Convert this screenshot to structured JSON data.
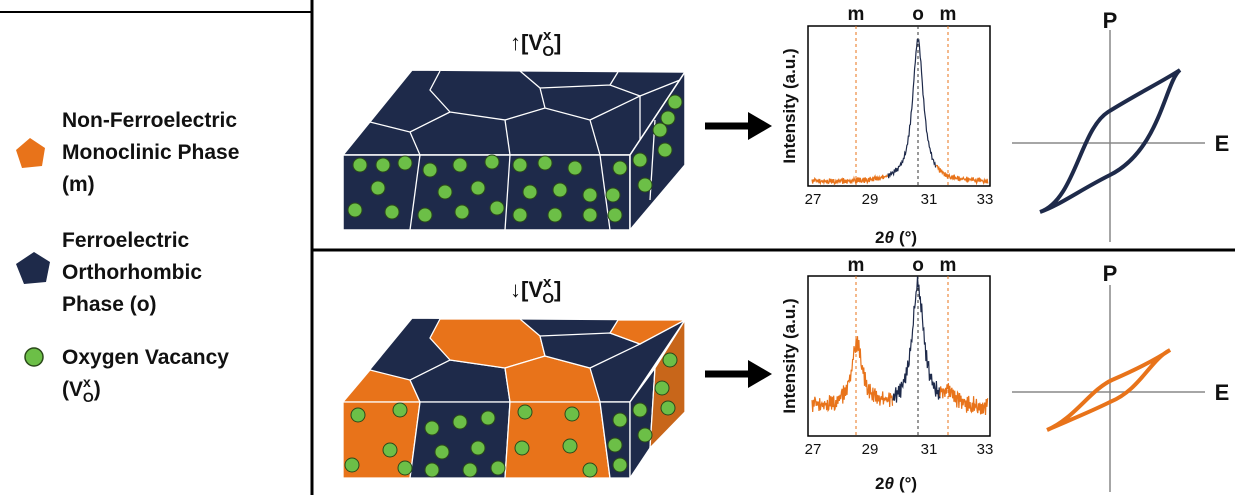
{
  "legend": [
    {
      "lines": [
        "Non-Ferroelectric",
        "Monoclinic Phase",
        "(m)"
      ]
    },
    {
      "lines": [
        "Ferroelectric",
        "Orthorhombic",
        "Phase (o)"
      ]
    },
    {
      "lines": [
        "Oxygen Vacancy"
      ],
      "symbol": {
        "open": "(",
        "base": "V",
        "sub": "O",
        "sup": "x",
        "close": ")"
      }
    }
  ],
  "panels": [
    {
      "label": {
        "arrow": "↑",
        "open": "[",
        "base": "V",
        "sub": "O",
        "sup": "x",
        "close": "]"
      },
      "xrd": {
        "peak_labels": [
          "m",
          "o",
          "m"
        ],
        "y_label": "Intensity (a.u.)",
        "x_label": {
          "base": "2",
          "italic": "θ",
          "unit": "(°)"
        },
        "xticks": [
          27,
          29,
          31,
          33
        ]
      },
      "loop": {
        "y_axis": "P",
        "x_axis": "E"
      }
    },
    {
      "label": {
        "arrow": "↓",
        "open": "[",
        "base": "V",
        "sub": "O",
        "sup": "x",
        "close": "]"
      },
      "xrd": {
        "peak_labels": [
          "m",
          "o",
          "m"
        ],
        "y_label": "Intensity (a.u.)",
        "x_label": {
          "base": "2",
          "italic": "θ",
          "unit": "(°)"
        },
        "xticks": [
          27,
          29,
          31,
          33
        ]
      },
      "loop": {
        "y_axis": "P",
        "x_axis": "E"
      }
    }
  ]
}
